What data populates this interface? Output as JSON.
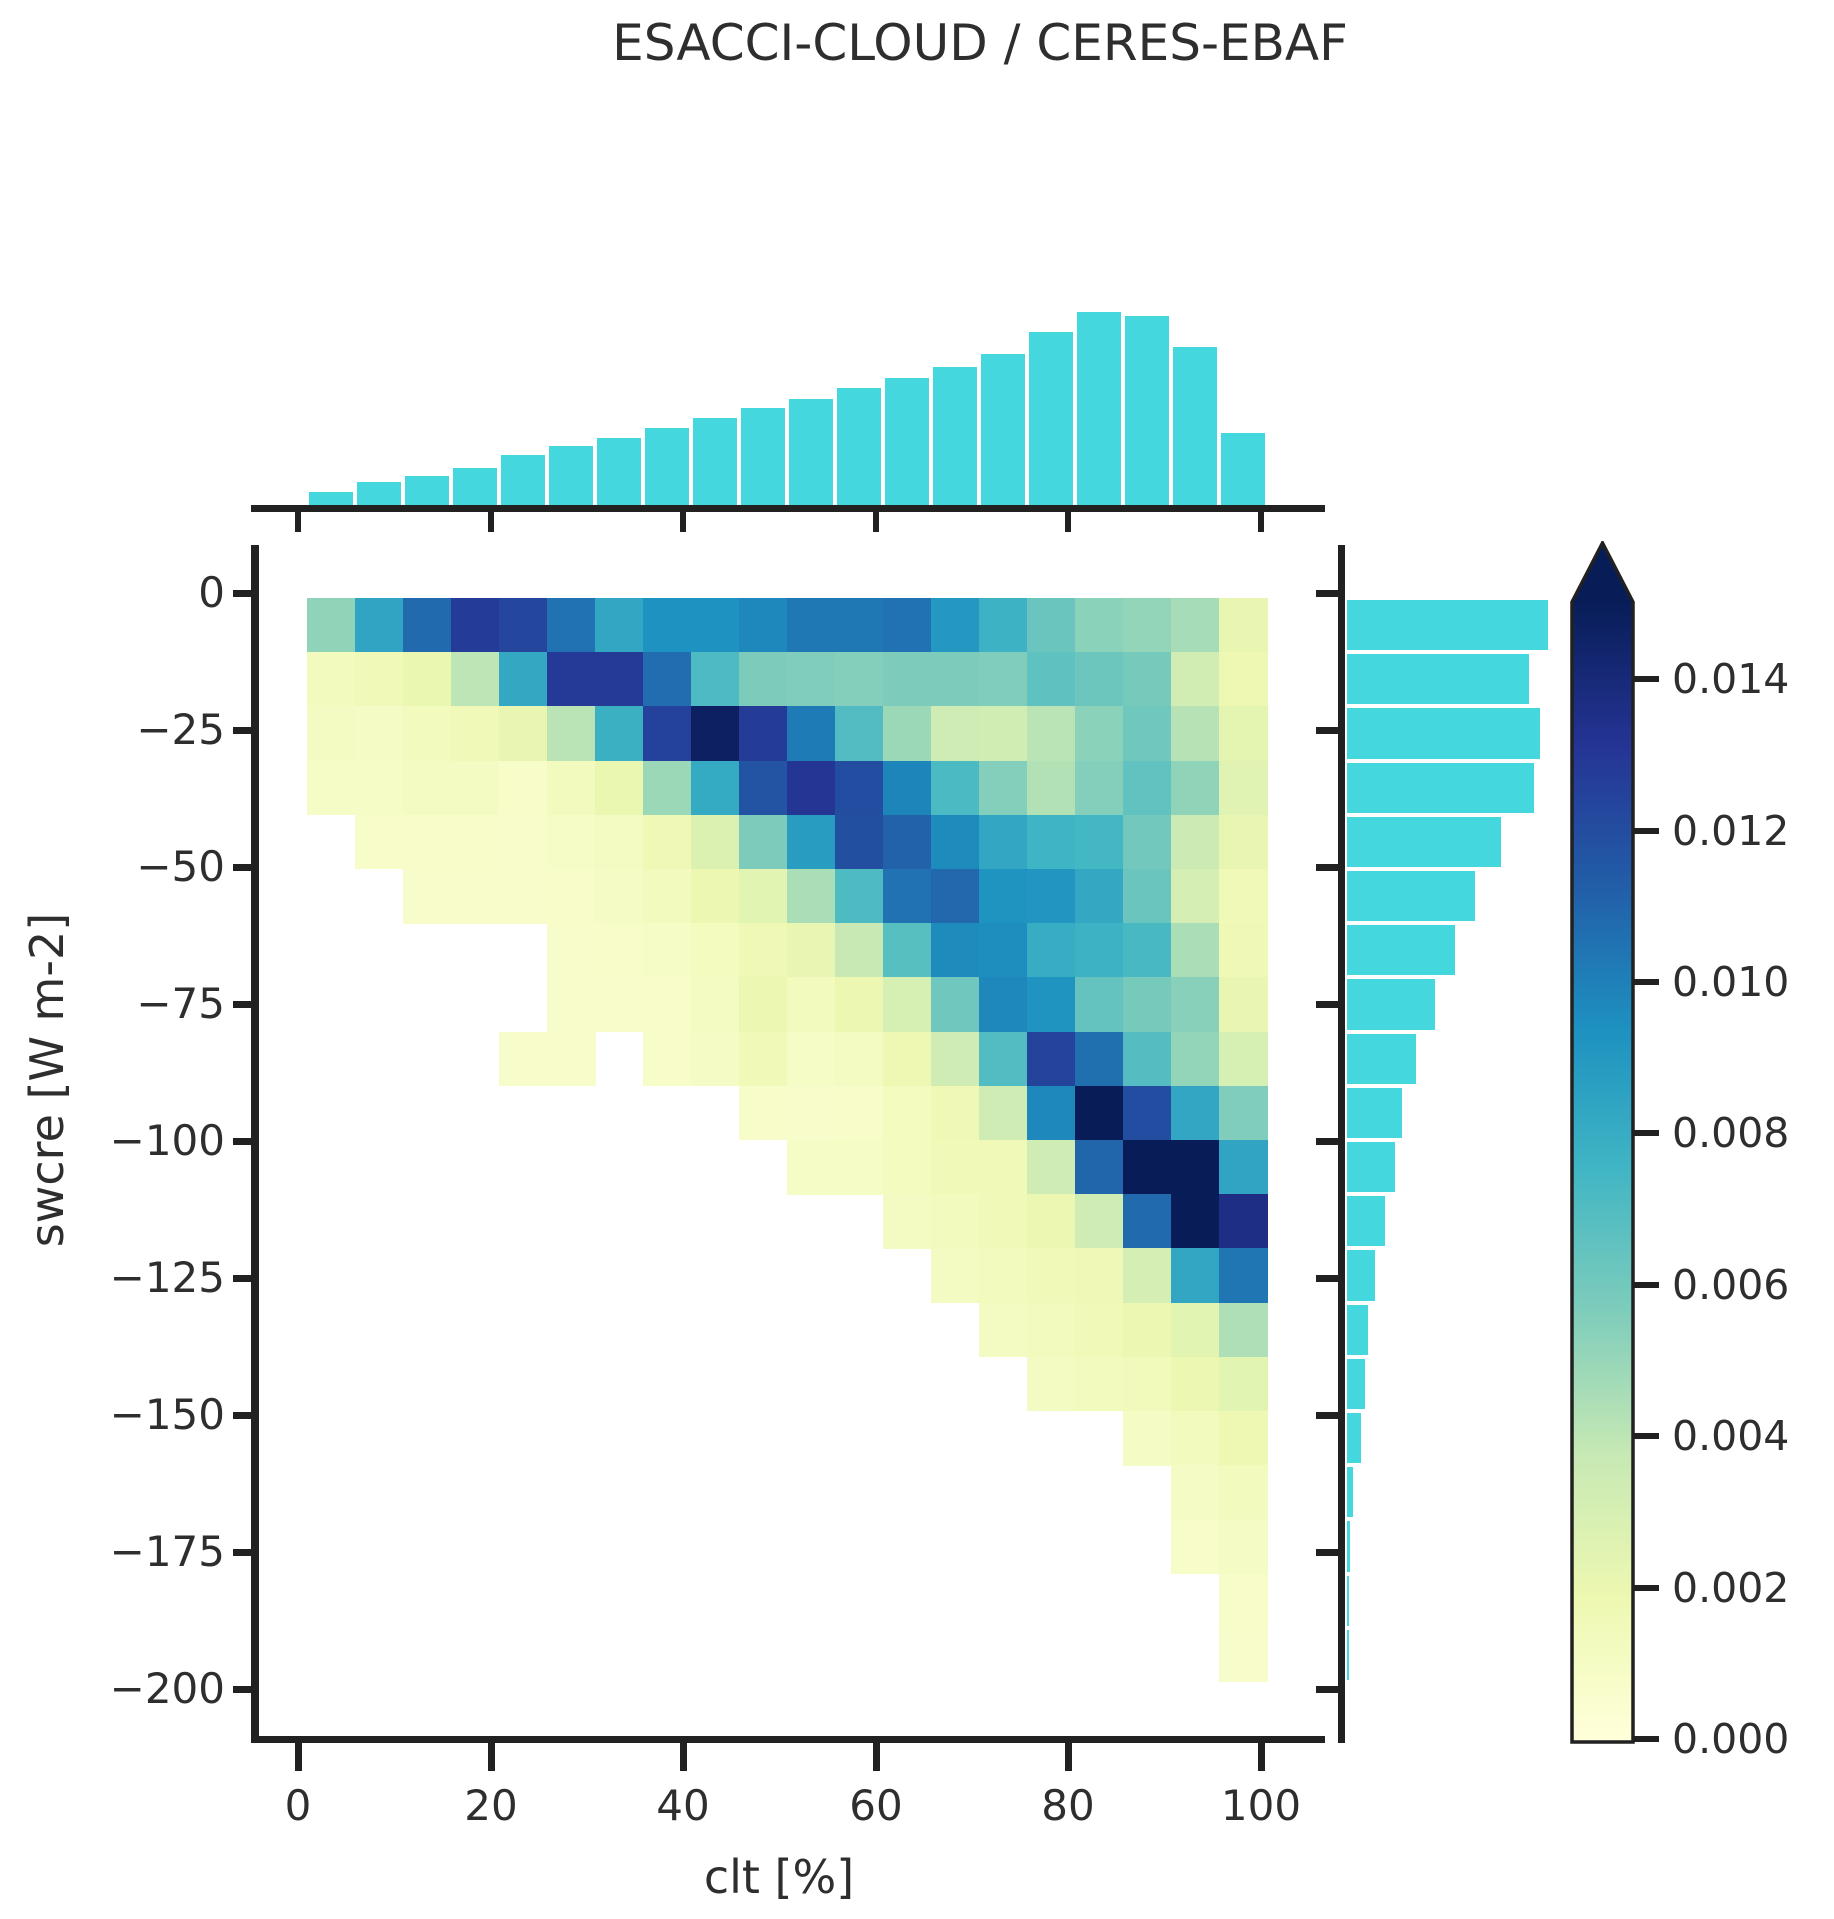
{
  "title": "ESACCI-CLOUD / CERES-EBAF",
  "colors": {
    "marginal_bar": "#44d7dd",
    "spine": "#212121",
    "text": "#2e2e2e",
    "background": "#ffffff"
  },
  "chart_data": {
    "type": "heatmap",
    "title": "ESACCI-CLOUD / CERES-EBAF",
    "xlabel": "clt [%]",
    "ylabel": "swcre [W m-2]",
    "x_tick_labels": [
      "0",
      "20",
      "40",
      "60",
      "80",
      "100"
    ],
    "x_tick_values": [
      0,
      20,
      40,
      60,
      80,
      100
    ],
    "y_tick_labels": [
      "0",
      "−25",
      "−50",
      "−75",
      "−100",
      "−125",
      "−150",
      "−175",
      "−200"
    ],
    "y_tick_values": [
      0,
      -25,
      -50,
      -75,
      -100,
      -125,
      -150,
      -175,
      -200
    ],
    "x_range": [
      0,
      100
    ],
    "y_range": [
      0,
      -200
    ],
    "n_cols": 20,
    "n_rows": 20,
    "x_bin_width": 5,
    "y_bin_width": -10,
    "values_note": "joint probability density x 1e-4, rows from swcre=0 downward, null = no data (white)",
    "values_e4": [
      [
        52,
        84,
        108,
        128,
        123,
        105,
        83,
        93,
        93,
        97,
        103,
        103,
        105,
        90,
        77,
        63,
        53,
        51,
        46,
        21
      ],
      [
        13,
        15,
        20,
        40,
        82,
        129,
        129,
        107,
        71,
        57,
        56,
        55,
        57,
        57,
        56,
        66,
        62,
        59,
        32,
        18
      ],
      [
        11,
        10,
        13,
        16,
        21,
        41,
        78,
        125,
        147,
        128,
        102,
        70,
        49,
        34,
        33,
        41,
        53,
        61,
        42,
        23
      ],
      [
        9,
        9,
        11,
        11,
        8,
        13,
        20,
        49,
        81,
        117,
        131,
        120,
        98,
        72,
        55,
        43,
        55,
        65,
        52,
        25
      ],
      [
        null,
        8,
        8,
        8,
        7,
        9,
        11,
        17,
        28,
        57,
        88,
        119,
        111,
        96,
        83,
        76,
        74,
        60,
        35,
        21
      ],
      [
        null,
        null,
        7,
        7,
        7,
        8,
        10,
        13,
        19,
        24,
        45,
        71,
        105,
        109,
        92,
        91,
        82,
        63,
        31,
        16
      ],
      [
        null,
        null,
        null,
        null,
        null,
        7,
        8,
        9,
        12,
        17,
        21,
        37,
        68,
        96,
        95,
        80,
        77,
        73,
        45,
        17
      ],
      [
        null,
        null,
        null,
        null,
        null,
        7,
        7,
        8,
        11,
        19,
        13,
        19,
        30,
        61,
        97,
        92,
        64,
        59,
        54,
        21
      ],
      [
        null,
        null,
        null,
        null,
        7,
        7,
        null,
        8,
        10,
        16,
        9,
        11,
        18,
        34,
        70,
        124,
        106,
        69,
        51,
        30
      ],
      [
        null,
        null,
        null,
        null,
        null,
        null,
        null,
        null,
        null,
        8,
        7,
        8,
        12,
        17,
        34,
        97,
        150,
        120,
        83,
        56
      ],
      [
        null,
        null,
        null,
        null,
        null,
        null,
        null,
        null,
        null,
        null,
        9,
        9,
        12,
        15,
        16,
        34,
        110,
        152,
        150,
        84
      ],
      [
        null,
        null,
        null,
        null,
        null,
        null,
        null,
        null,
        null,
        null,
        null,
        null,
        11,
        13,
        15,
        19,
        34,
        108,
        151,
        136
      ],
      [
        null,
        null,
        null,
        null,
        null,
        null,
        null,
        null,
        null,
        null,
        null,
        null,
        null,
        11,
        13,
        15,
        17,
        31,
        83,
        104
      ],
      [
        null,
        null,
        null,
        null,
        null,
        null,
        null,
        null,
        null,
        null,
        null,
        null,
        null,
        null,
        11,
        13,
        15,
        19,
        24,
        44
      ],
      [
        null,
        null,
        null,
        null,
        null,
        null,
        null,
        null,
        null,
        null,
        null,
        null,
        null,
        null,
        null,
        11,
        13,
        14,
        19,
        24
      ],
      [
        null,
        null,
        null,
        null,
        null,
        null,
        null,
        null,
        null,
        null,
        null,
        null,
        null,
        null,
        null,
        null,
        null,
        10,
        13,
        18
      ],
      [
        null,
        null,
        null,
        null,
        null,
        null,
        null,
        null,
        null,
        null,
        null,
        null,
        null,
        null,
        null,
        null,
        null,
        null,
        10,
        13
      ],
      [
        null,
        null,
        null,
        null,
        null,
        null,
        null,
        null,
        null,
        null,
        null,
        null,
        null,
        null,
        null,
        null,
        null,
        null,
        8,
        10
      ],
      [
        null,
        null,
        null,
        null,
        null,
        null,
        null,
        null,
        null,
        null,
        null,
        null,
        null,
        null,
        null,
        null,
        null,
        null,
        null,
        8
      ],
      [
        null,
        null,
        null,
        null,
        null,
        null,
        null,
        null,
        null,
        null,
        null,
        null,
        null,
        null,
        null,
        null,
        null,
        null,
        null,
        7
      ]
    ],
    "colormap": {
      "name": "YlGnBu",
      "vmin": 0.0,
      "vmax": 0.015,
      "anchors": [
        "#ffffd9",
        "#edf8b1",
        "#c7e9b4",
        "#7fcdbb",
        "#41b6c4",
        "#1d91c0",
        "#225ea8",
        "#253494",
        "#081d58"
      ]
    },
    "colorbar": {
      "extend": "max",
      "tick_labels": [
        "0.014",
        "0.012",
        "0.010",
        "0.008",
        "0.006",
        "0.004",
        "0.002",
        "0.000"
      ],
      "tick_values": [
        0.014,
        0.012,
        0.01,
        0.008,
        0.006,
        0.004,
        0.002,
        0.0
      ]
    },
    "top_marginal": {
      "type": "bar",
      "axis": "clt [%]",
      "bin_centers": [
        2.5,
        7.5,
        12.5,
        17.5,
        22.5,
        27.5,
        32.5,
        37.5,
        42.5,
        47.5,
        52.5,
        57.5,
        62.5,
        67.5,
        72.5,
        77.5,
        82.5,
        87.5,
        92.5,
        97.5
      ],
      "relative_heights": [
        0.067,
        0.119,
        0.15,
        0.192,
        0.261,
        0.308,
        0.349,
        0.4,
        0.451,
        0.502,
        0.549,
        0.606,
        0.658,
        0.715,
        0.782,
        0.896,
        1.0,
        0.979,
        0.819,
        0.373
      ]
    },
    "right_marginal": {
      "type": "bar",
      "axis": "swcre [W m-2]",
      "bin_centers": [
        -5,
        -15,
        -25,
        -35,
        -45,
        -55,
        -65,
        -75,
        -85,
        -95,
        -105,
        -115,
        -125,
        -135,
        -145,
        -155,
        -165,
        -175,
        -185,
        -195
      ],
      "relative_lengths": [
        1.0,
        0.905,
        0.96,
        0.93,
        0.766,
        0.637,
        0.537,
        0.438,
        0.343,
        0.274,
        0.239,
        0.189,
        0.139,
        0.104,
        0.09,
        0.07,
        0.03,
        0.015,
        0.01,
        0.01
      ]
    }
  }
}
